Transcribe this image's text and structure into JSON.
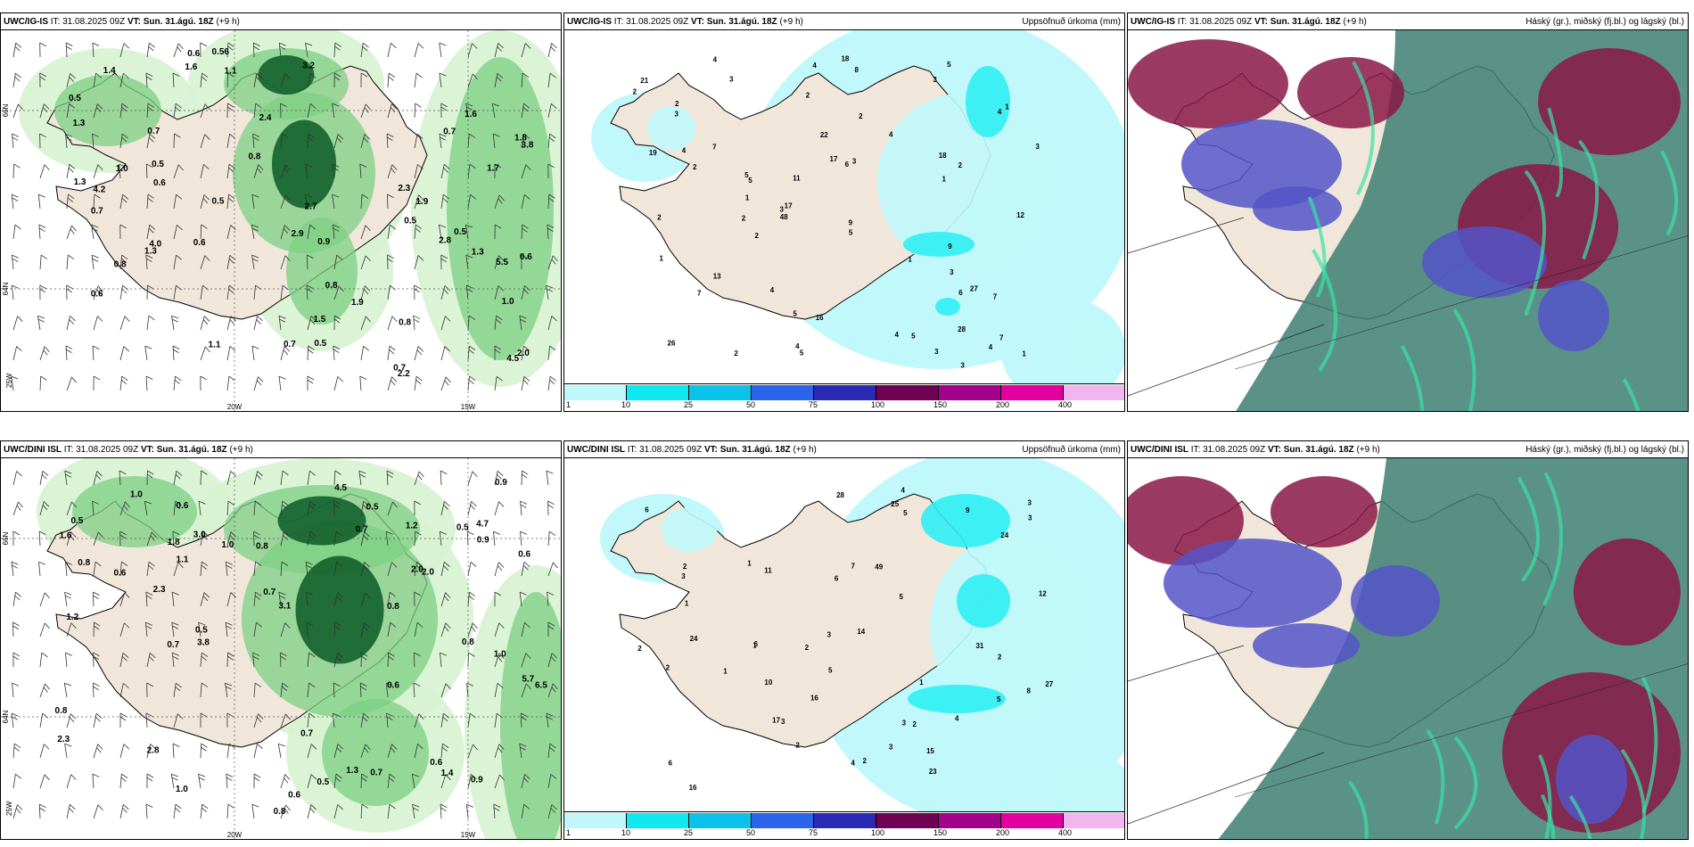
{
  "panels": [
    {
      "id": "p1",
      "model": "UWC/IG-IS",
      "it_label": "IT:",
      "it": "31.08.2025 09Z",
      "vt_label": "VT:",
      "vt": "Sun. 31.ágú. 18Z",
      "lead": "(+9 h)",
      "title": "",
      "lat_labels": [
        "66N",
        "64N"
      ],
      "lon_labels": [
        "25W",
        "20W",
        "15W"
      ],
      "values": [
        "1.0",
        "1.3",
        "1.6",
        "1.7",
        "2.4",
        "0.7",
        "3.8",
        "4.0",
        "0.9",
        "0.7",
        "3.2",
        "2.3",
        "1.9",
        "2.2",
        "1.5",
        "1.0",
        "0.8",
        "1.1",
        "4.5",
        "4.2",
        "2.9",
        "2.7",
        "5.5",
        "0.6",
        "0.5",
        "0.6",
        "0.7",
        "1.1",
        "0.8",
        "1.3",
        "0.6",
        "1.3",
        "1.8",
        "0.7",
        "0.5",
        "0.8",
        "1.9",
        "2.0",
        "2.8",
        "0.7",
        "0.6",
        "0.5",
        "1.4",
        "0.8",
        "1.6",
        "0.5",
        "0.6",
        "0.5",
        "0.56",
        "0.5",
        "1.3"
      ]
    },
    {
      "id": "p2",
      "model": "UWC/IG-IS",
      "it_label": "IT:",
      "it": "31.08.2025 09Z",
      "vt_label": "VT:",
      "vt": "Sun. 31.ágú. 18Z",
      "lead": "(+9 h)",
      "title": "Uppsöfnuð úrkoma (mm)",
      "values": [
        "7",
        "4",
        "5",
        "2",
        "3",
        "4",
        "5",
        "11",
        "13",
        "6",
        "2",
        "4",
        "3",
        "1",
        "18",
        "17",
        "22",
        "17",
        "28",
        "4",
        "3",
        "2",
        "2",
        "3",
        "2",
        "4",
        "5",
        "3",
        "1",
        "5",
        "3",
        "2",
        "7",
        "19",
        "4",
        "2",
        "1",
        "5",
        "3",
        "7",
        "16",
        "12",
        "9",
        "2",
        "27",
        "26",
        "18",
        "48",
        "9",
        "8",
        "1",
        "5",
        "7",
        "5",
        "21",
        "2",
        "1",
        "3",
        "2",
        "6",
        "1",
        "3",
        "4",
        "4",
        "4"
      ]
    },
    {
      "id": "p3",
      "model": "UWC/IG-IS",
      "it_label": "IT:",
      "it": "31.08.2025 09Z",
      "vt_label": "VT:",
      "vt": "Sun. 31.ágú. 18Z",
      "lead": "(+9 h)",
      "title": "Háský (gr.), miðský (fj.bl.) og lágský (bl.)"
    },
    {
      "id": "p4",
      "model": "UWC/DINI ISL",
      "it_label": "IT:",
      "it": "31.08.2025 09Z",
      "vt_label": "VT:",
      "vt": "Sun. 31.ágú. 18Z",
      "lead": "(+9 h)",
      "title": "",
      "lat_labels": [
        "66N",
        "64N"
      ],
      "lon_labels": [
        "25W",
        "20W",
        "15W"
      ],
      "values": [
        "0.8",
        "1.1",
        "0.8",
        "0.6",
        "0.5",
        "0.8",
        "0.6",
        "3.8",
        "4.7",
        "6.5",
        "5.7",
        "3.0",
        "2.0",
        "2.8",
        "1.2",
        "1.0",
        "0.5",
        "0.8",
        "0.9",
        "1.3",
        "1.4",
        "1.0",
        "3.1",
        "0.7",
        "1.2",
        "2.3",
        "0.9",
        "0.5",
        "1.0",
        "0.7",
        "0.8",
        "0.7",
        "0.9",
        "0.6",
        "0.5",
        "0.6",
        "1.0",
        "0.7",
        "4.5",
        "2.3",
        "2.0",
        "1.8",
        "0.7",
        "0.6",
        "0.5",
        "0.6",
        "1.6",
        "0.8"
      ]
    },
    {
      "id": "p5",
      "model": "UWC/DINI ISL",
      "it_label": "IT:",
      "it": "31.08.2025 09Z",
      "vt_label": "VT:",
      "vt": "Sun. 31.ágú. 18Z",
      "lead": "(+9 h)",
      "title": "Uppsöfnuð úrkoma (mm)",
      "values": [
        "1",
        "2",
        "3",
        "5",
        "4",
        "3",
        "2",
        "6",
        "7",
        "6",
        "5",
        "16",
        "23",
        "24",
        "27",
        "28",
        "25",
        "14",
        "15",
        "3",
        "2",
        "1",
        "2",
        "3",
        "4",
        "2",
        "5",
        "6",
        "17",
        "11",
        "49",
        "24",
        "31",
        "12",
        "5",
        "10",
        "9",
        "8",
        "16",
        "2",
        "1",
        "3",
        "6",
        "4",
        "2",
        "1",
        "3",
        "2",
        "3",
        "1"
      ]
    },
    {
      "id": "p6",
      "model": "UWC/DINI ISL",
      "it_label": "IT:",
      "it": "31.08.2025 09Z",
      "vt_label": "VT:",
      "vt": "Sun. 31.ágú. 18Z",
      "lead": "(+9 h)",
      "title": "Háský (gr.), miðský (fj.bl.) og lágský (bl.)"
    }
  ],
  "colorbar": {
    "labels": [
      "1",
      "10",
      "25",
      "50",
      "75",
      "100",
      "150",
      "200",
      "400"
    ],
    "colors": [
      "#bff7fb",
      "#11e9f0",
      "#0bc3ea",
      "#2c64ec",
      "#2a2ab4",
      "#6f0053",
      "#a3008c",
      "#e4009e",
      "#f1b6ef"
    ]
  },
  "colors": {
    "land": "#f1e6da",
    "wind_green_light": "#d6f3d0",
    "wind_green": "#7ccf83",
    "wind_green_dark": "#0c5a26",
    "precip_cyan": "#c1f8fb",
    "precip_cyan_mid": "#2feef3",
    "cloud_teal": "#3e7f72",
    "cloud_red": "#8a1746",
    "cloud_blue": "#5355c8"
  }
}
